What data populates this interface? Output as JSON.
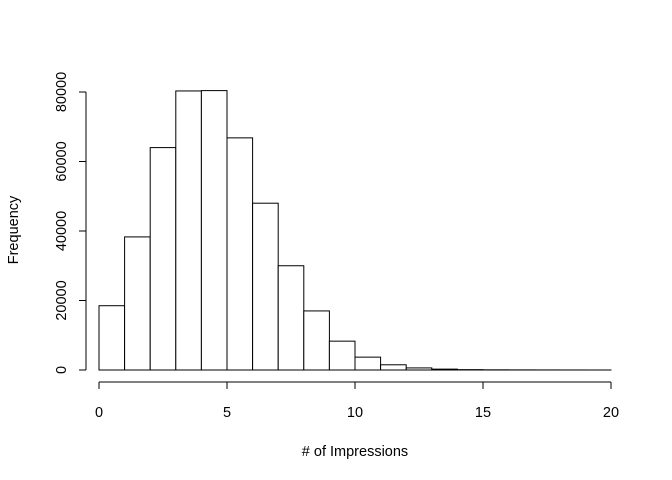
{
  "chart_data": {
    "type": "bar",
    "title": "",
    "xlabel": "# of Impressions",
    "ylabel": "Frequency",
    "bin_edges": [
      0,
      1,
      2,
      3,
      4,
      5,
      6,
      7,
      8,
      9,
      10,
      11,
      12,
      13,
      14,
      15,
      16,
      17,
      18,
      19,
      20
    ],
    "values": [
      18500,
      38300,
      64000,
      80300,
      80400,
      66800,
      48000,
      30000,
      17000,
      8300,
      3700,
      1500,
      600,
      250,
      100,
      50,
      30,
      20,
      10,
      5
    ],
    "xlim": [
      0,
      20
    ],
    "ylim": [
      0,
      80000
    ],
    "x_ticks": [
      0,
      5,
      10,
      15,
      20
    ],
    "y_ticks": [
      0,
      20000,
      40000,
      60000,
      80000
    ],
    "x_tick_labels": [
      "0",
      "5",
      "10",
      "15",
      "20"
    ],
    "y_tick_labels": [
      "0",
      "20000",
      "40000",
      "60000",
      "80000"
    ],
    "grid": false,
    "bar_color": "#ffffff",
    "edge_color": "#000000"
  }
}
